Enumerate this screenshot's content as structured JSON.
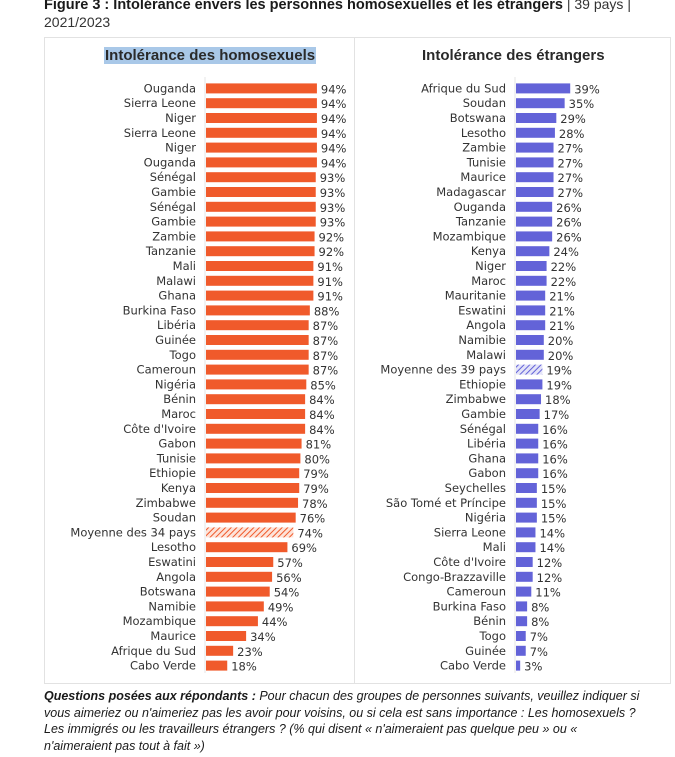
{
  "figure": {
    "title_bold": "Figure 3 : Intolérance envers les personnes homosexuelles et les étrangers",
    "title_rest": " | 39 pays | 2021/2023"
  },
  "note": {
    "lead": "Questions posées aux répondants :",
    "text": " Pour chacun des groupes de personnes suivants, veuillez indiquer si vous aimeriez ou n'aimeriez pas les avoir pour voisins, ou si cela est sans importance : Les homosexuels ? Les immigrés ou les travailleurs étrangers ? (% qui disent « n'aimeraient pas quelque peu » ou « n'aimeraient pas tout à fait »)"
  },
  "colors": {
    "homosexuels": "#f05a2b",
    "etrangers": "#6363d8",
    "title_highlight": "#a9c8e8"
  },
  "chart_data": [
    {
      "type": "bar",
      "orientation": "horizontal",
      "title": "Intolérance des homosexuels",
      "xlabel": "",
      "ylabel": "",
      "xlim": [
        0,
        100
      ],
      "grid": false,
      "legend": "none",
      "average_label": "Moyenne des 34 pays",
      "categories": [
        "Ouganda",
        "Sierra Leone",
        "Niger",
        "Sierra Leone",
        "Niger",
        "Ouganda",
        "Sénégal",
        "Gambie",
        "Sénégal",
        "Gambie",
        "Zambie",
        "Tanzanie",
        "Mali",
        "Malawi",
        "Ghana",
        "Burkina Faso",
        "Libéria",
        "Guinée",
        "Togo",
        "Cameroun",
        "Nigéria",
        "Bénin",
        "Maroc",
        "Côte d'Ivoire",
        "Gabon",
        "Tunisie",
        "Ethiopie",
        "Kenya",
        "Zimbabwe",
        "Soudan",
        "Moyenne des 34 pays",
        "Lesotho",
        "Eswatini",
        "Angola",
        "Botswana",
        "Namibie",
        "Mozambique",
        "Maurice",
        "Afrique du Sud",
        "Cabo Verde"
      ],
      "values": [
        94,
        94,
        94,
        94,
        94,
        94,
        93,
        93,
        93,
        93,
        92,
        92,
        91,
        91,
        91,
        88,
        87,
        87,
        87,
        87,
        85,
        84,
        84,
        84,
        81,
        80,
        79,
        79,
        78,
        76,
        74,
        69,
        57,
        56,
        54,
        49,
        44,
        34,
        23,
        18
      ],
      "value_suffix": "%"
    },
    {
      "type": "bar",
      "orientation": "horizontal",
      "title": "Intolérance des étrangers",
      "xlabel": "",
      "ylabel": "",
      "xlim": [
        0,
        100
      ],
      "grid": false,
      "legend": "none",
      "average_label": "Moyenne des 39 pays",
      "categories": [
        "Afrique du Sud",
        "Soudan",
        "Botswana",
        "Lesotho",
        "Zambie",
        "Tunisie",
        "Maurice",
        "Madagascar",
        "Ouganda",
        "Tanzanie",
        "Mozambique",
        "Kenya",
        "Niger",
        "Maroc",
        "Mauritanie",
        "Eswatini",
        "Angola",
        "Namibie",
        "Malawi",
        "Moyenne des 39 pays",
        "Ethiopie",
        "Zimbabwe",
        "Gambie",
        "Sénégal",
        "Libéria",
        "Ghana",
        "Gabon",
        "Seychelles",
        "São Tomé et Príncipe",
        "Nigéria",
        "Sierra Leone",
        "Mali",
        "Côte d'Ivoire",
        "Congo-Brazzaville",
        "Cameroun",
        "Burkina Faso",
        "Bénin",
        "Togo",
        "Guinée",
        "Cabo Verde"
      ],
      "values": [
        39,
        35,
        29,
        28,
        27,
        27,
        27,
        27,
        26,
        26,
        26,
        24,
        22,
        22,
        21,
        21,
        21,
        20,
        20,
        19,
        19,
        18,
        17,
        16,
        16,
        16,
        16,
        15,
        15,
        15,
        14,
        14,
        12,
        12,
        11,
        8,
        8,
        7,
        7,
        3
      ],
      "value_suffix": "%"
    }
  ]
}
